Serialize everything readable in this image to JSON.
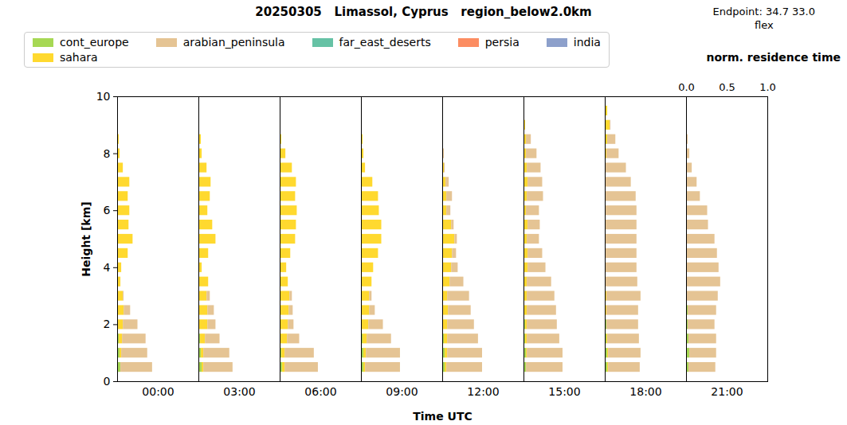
{
  "chart_data": {
    "type": "bar",
    "orientation": "horizontal",
    "stacked": true,
    "title": "20250305   Limassol, Cyprus   region_below2.0km",
    "annotations": [
      "Endpoint: 34.7 33.0",
      "flex"
    ],
    "xlabel": "norm. residence time",
    "panel_axis_label": "Time UTC",
    "ylabel": "Height [km]",
    "xlim": [
      0,
      1
    ],
    "xticks": [
      {
        "value": 0,
        "label": "0.0"
      },
      {
        "value": 0.5,
        "label": "0.5"
      },
      {
        "value": 1,
        "label": "1.0"
      }
    ],
    "ylim": [
      0,
      10
    ],
    "yticks": [
      0,
      2,
      4,
      6,
      8,
      10
    ],
    "legend": "top-left",
    "y": [
      0.5,
      1.0,
      1.5,
      2.0,
      2.5,
      3.0,
      3.5,
      4.0,
      4.5,
      5.0,
      5.5,
      6.0,
      6.5,
      7.0,
      7.5,
      8.0,
      8.5,
      9.0,
      9.5
    ],
    "series": [
      {
        "name": "cont_europe",
        "color": "#a6d854"
      },
      {
        "name": "sahara",
        "color": "#ffd92f"
      },
      {
        "name": "arabian_peninsula",
        "color": "#e5c494"
      },
      {
        "name": "far_east_deserts",
        "color": "#66c2a5"
      },
      {
        "name": "persia",
        "color": "#fc8d62"
      },
      {
        "name": "india",
        "color": "#8da0cb"
      }
    ],
    "panels": [
      {
        "label": "00:00",
        "series": [
          {
            "name": "cont_europe",
            "values": [
              0.04,
              0.03,
              0.02,
              0.01,
              0,
              0,
              0,
              0,
              0,
              0,
              0,
              0,
              0,
              0,
              0,
              0,
              0,
              0,
              0
            ]
          },
          {
            "name": "sahara",
            "values": [
              0,
              0.02,
              0.04,
              0.06,
              0.08,
              0.07,
              0.04,
              0.05,
              0.13,
              0.19,
              0.14,
              0.15,
              0.13,
              0.15,
              0.07,
              0.03,
              0.02,
              0.01,
              0
            ]
          },
          {
            "name": "arabian_peninsula",
            "values": [
              0.39,
              0.32,
              0.29,
              0.18,
              0.08,
              0.01,
              0,
              0,
              0,
              0,
              0,
              0,
              0,
              0,
              0,
              0,
              0,
              0,
              0
            ]
          }
        ]
      },
      {
        "label": "03:00",
        "series": [
          {
            "name": "cont_europe",
            "values": [
              0.04,
              0.03,
              0.02,
              0.01,
              0,
              0,
              0,
              0,
              0,
              0,
              0,
              0,
              0,
              0,
              0,
              0,
              0,
              0,
              0
            ]
          },
          {
            "name": "sahara",
            "values": [
              0.02,
              0.03,
              0.06,
              0.1,
              0.11,
              0.1,
              0.12,
              0.04,
              0.12,
              0.21,
              0.17,
              0.11,
              0.14,
              0.15,
              0.1,
              0.04,
              0.03,
              0.01,
              0
            ]
          },
          {
            "name": "arabian_peninsula",
            "values": [
              0.36,
              0.32,
              0.18,
              0.1,
              0.08,
              0.04,
              0,
              0,
              0,
              0,
              0,
              0,
              0,
              0,
              0,
              0,
              0,
              0,
              0
            ]
          }
        ]
      },
      {
        "label": "06:00",
        "series": [
          {
            "name": "cont_europe",
            "values": [
              0.03,
              0.02,
              0.01,
              0,
              0,
              0,
              0,
              0,
              0,
              0,
              0,
              0,
              0,
              0,
              0,
              0,
              0,
              0,
              0
            ]
          },
          {
            "name": "sahara",
            "values": [
              0.03,
              0.04,
              0.08,
              0.1,
              0.11,
              0.12,
              0.1,
              0.08,
              0.13,
              0.19,
              0.2,
              0.21,
              0.19,
              0.2,
              0.15,
              0.07,
              0.02,
              0.01,
              0
            ]
          },
          {
            "name": "arabian_peninsula",
            "values": [
              0.41,
              0.36,
              0.15,
              0.07,
              0.05,
              0.03,
              0,
              0,
              0,
              0,
              0,
              0,
              0,
              0,
              0,
              0,
              0,
              0,
              0
            ]
          }
        ]
      },
      {
        "label": "09:00",
        "series": [
          {
            "name": "cont_europe",
            "values": [
              0.03,
              0.03,
              0.02,
              0.01,
              0,
              0,
              0,
              0,
              0,
              0,
              0,
              0,
              0,
              0,
              0,
              0,
              0,
              0,
              0
            ]
          },
          {
            "name": "sahara",
            "values": [
              0.02,
              0.03,
              0.05,
              0.08,
              0.1,
              0.1,
              0.13,
              0.15,
              0.21,
              0.25,
              0.25,
              0.22,
              0.21,
              0.14,
              0.05,
              0.03,
              0.02,
              0.01,
              0
            ]
          },
          {
            "name": "arabian_peninsula",
            "values": [
              0.43,
              0.42,
              0.3,
              0.18,
              0.07,
              0.03,
              0,
              0,
              0,
              0,
              0,
              0,
              0,
              0,
              0,
              0,
              0,
              0,
              0
            ]
          }
        ]
      },
      {
        "label": "12:00",
        "series": [
          {
            "name": "cont_europe",
            "values": [
              0.03,
              0.03,
              0.02,
              0.01,
              0.01,
              0,
              0,
              0,
              0,
              0,
              0,
              0,
              0,
              0,
              0,
              0,
              0,
              0,
              0
            ]
          },
          {
            "name": "sahara",
            "values": [
              0.02,
              0.03,
              0.04,
              0.05,
              0.06,
              0.06,
              0.09,
              0.11,
              0.12,
              0.15,
              0.11,
              0.05,
              0.05,
              0.04,
              0.02,
              0.01,
              0.01,
              0,
              0
            ]
          },
          {
            "name": "arabian_peninsula",
            "values": [
              0.44,
              0.43,
              0.38,
              0.33,
              0.28,
              0.27,
              0.17,
              0.08,
              0.05,
              0.03,
              0.03,
              0.05,
              0.07,
              0.04,
              0.01,
              0.01,
              0,
              0,
              0
            ]
          }
        ]
      },
      {
        "label": "15:00",
        "series": [
          {
            "name": "cont_europe",
            "values": [
              0.03,
              0.03,
              0.02,
              0.02,
              0.01,
              0.01,
              0,
              0,
              0,
              0,
              0,
              0,
              0,
              0,
              0,
              0,
              0,
              0,
              0
            ]
          },
          {
            "name": "sahara",
            "values": [
              0,
              0.01,
              0.02,
              0.02,
              0.03,
              0.03,
              0.04,
              0.05,
              0.05,
              0.04,
              0.05,
              0.03,
              0.04,
              0.05,
              0.04,
              0.03,
              0.03,
              0.02,
              0
            ]
          },
          {
            "name": "arabian_peninsula",
            "values": [
              0.45,
              0.44,
              0.4,
              0.37,
              0.36,
              0.34,
              0.3,
              0.22,
              0.18,
              0.15,
              0.15,
              0.16,
              0.2,
              0.18,
              0.17,
              0.13,
              0.06,
              0,
              0
            ]
          }
        ]
      },
      {
        "label": "18:00",
        "series": [
          {
            "name": "cont_europe",
            "values": [
              0.03,
              0.03,
              0.02,
              0.02,
              0.01,
              0.01,
              0.01,
              0,
              0,
              0,
              0,
              0,
              0,
              0,
              0,
              0,
              0,
              0,
              0
            ]
          },
          {
            "name": "sahara",
            "values": [
              0.01,
              0.01,
              0.01,
              0,
              0.01,
              0.01,
              0,
              0,
              0,
              0,
              0,
              0,
              0,
              0,
              0.01,
              0.02,
              0.03,
              0.06,
              0.03
            ]
          },
          {
            "name": "arabian_peninsula",
            "values": [
              0.39,
              0.4,
              0.39,
              0.39,
              0.39,
              0.42,
              0.39,
              0.39,
              0.39,
              0.39,
              0.39,
              0.39,
              0.38,
              0.32,
              0.25,
              0.15,
              0.1,
              0.01,
              0
            ]
          }
        ]
      },
      {
        "label": "21:00",
        "series": [
          {
            "name": "cont_europe",
            "values": [
              0.03,
              0.04,
              0.03,
              0.02,
              0.02,
              0.01,
              0.01,
              0,
              0,
              0,
              0,
              0,
              0,
              0,
              0,
              0,
              0,
              0,
              0
            ]
          },
          {
            "name": "sahara",
            "values": [
              0,
              0,
              0,
              0,
              0,
              0,
              0,
              0,
              0,
              0,
              0,
              0,
              0,
              0,
              0,
              0,
              0.01,
              0,
              0
            ]
          },
          {
            "name": "arabian_peninsula",
            "values": [
              0.33,
              0.33,
              0.34,
              0.33,
              0.35,
              0.38,
              0.41,
              0.4,
              0.38,
              0.35,
              0.27,
              0.26,
              0.17,
              0.13,
              0.07,
              0.04,
              0.01,
              0,
              0
            ]
          }
        ]
      }
    ]
  }
}
